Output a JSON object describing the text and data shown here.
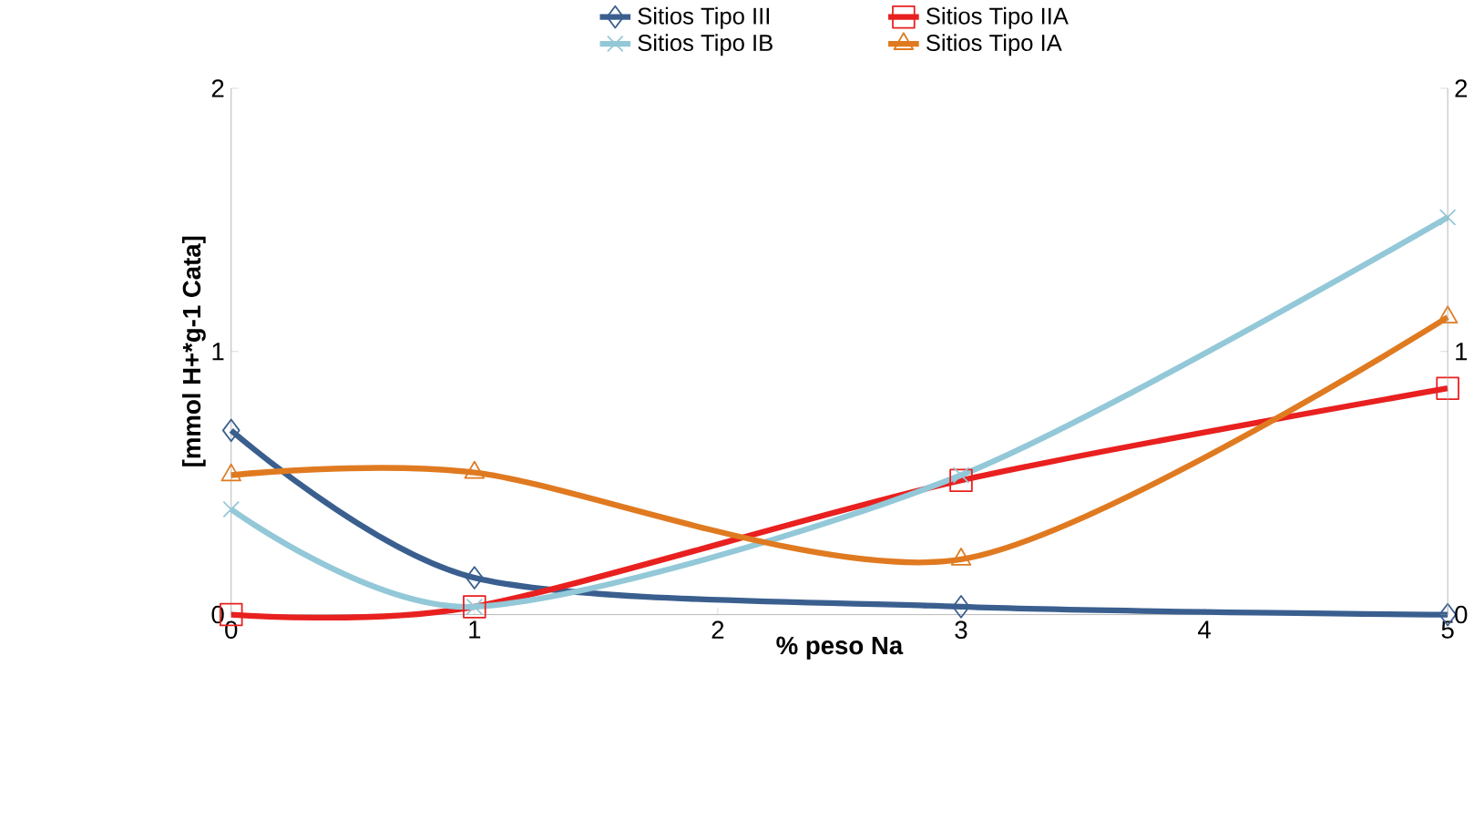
{
  "chart_data": {
    "type": "line",
    "xlabel": "% peso Na",
    "ylabel": "[mmol H+*g-1 Cata]",
    "x": [
      0,
      1,
      3,
      5
    ],
    "xlim": [
      0,
      5
    ],
    "xticks": [
      0,
      1,
      2,
      3,
      4,
      5
    ],
    "ylim": [
      0,
      2
    ],
    "yticks": [
      0,
      1,
      2
    ],
    "y2lim": [
      0,
      2
    ],
    "y2ticks": [
      0,
      1,
      2
    ],
    "legend": "top",
    "grid": false,
    "series": [
      {
        "name": "Sitios Tipo III",
        "color": "#3a5f8f",
        "marker": "diamond",
        "values": [
          0.7,
          0.14,
          0.03,
          0.0
        ]
      },
      {
        "name": "Sitios Tipo IIA",
        "color": "#e8201f",
        "marker": "square",
        "values": [
          0.0,
          0.03,
          0.51,
          0.86
        ]
      },
      {
        "name": "Sitios Tipo IB",
        "color": "#93c8d8",
        "marker": "cross",
        "values": [
          0.4,
          0.03,
          0.53,
          1.51
        ]
      },
      {
        "name": "Sitios Tipo IA",
        "color": "#e07a20",
        "marker": "triangle",
        "values": [
          0.53,
          0.54,
          0.21,
          1.13
        ]
      }
    ]
  }
}
